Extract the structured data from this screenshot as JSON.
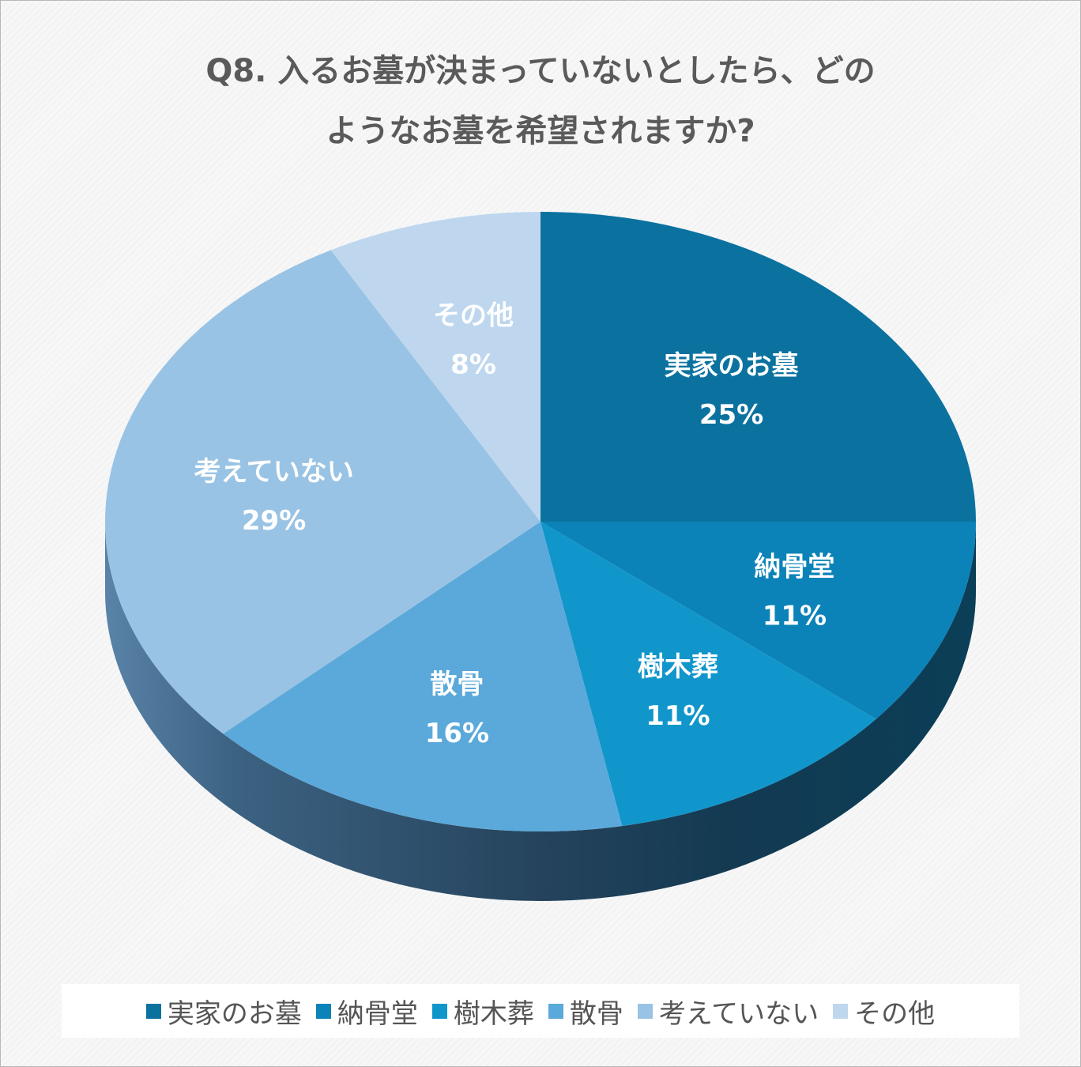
{
  "title_lines": [
    "Q8. 入るお墓が決まっていないとしたら、どの",
    "ようなお墓を希望されますか?"
  ],
  "chart_data": {
    "type": "pie",
    "style": "3d",
    "start_angle": "12 o'clock, clockwise",
    "legend_position": "bottom",
    "slices": [
      {
        "label": "実家のお墓",
        "value": 25,
        "value_label": "25%",
        "color": "#0b72a0"
      },
      {
        "label": "納骨堂",
        "value": 11,
        "value_label": "11%",
        "color": "#0b83b8"
      },
      {
        "label": "樹木葬",
        "value": 11,
        "value_label": "11%",
        "color": "#1196cb"
      },
      {
        "label": "散骨",
        "value": 16,
        "value_label": "16%",
        "color": "#5ba9da"
      },
      {
        "label": "考えていない",
        "value": 29,
        "value_label": "29%",
        "color": "#99c3e4"
      },
      {
        "label": "その他",
        "value": 8,
        "value_label": "8%",
        "color": "#bed7ee"
      }
    ]
  }
}
